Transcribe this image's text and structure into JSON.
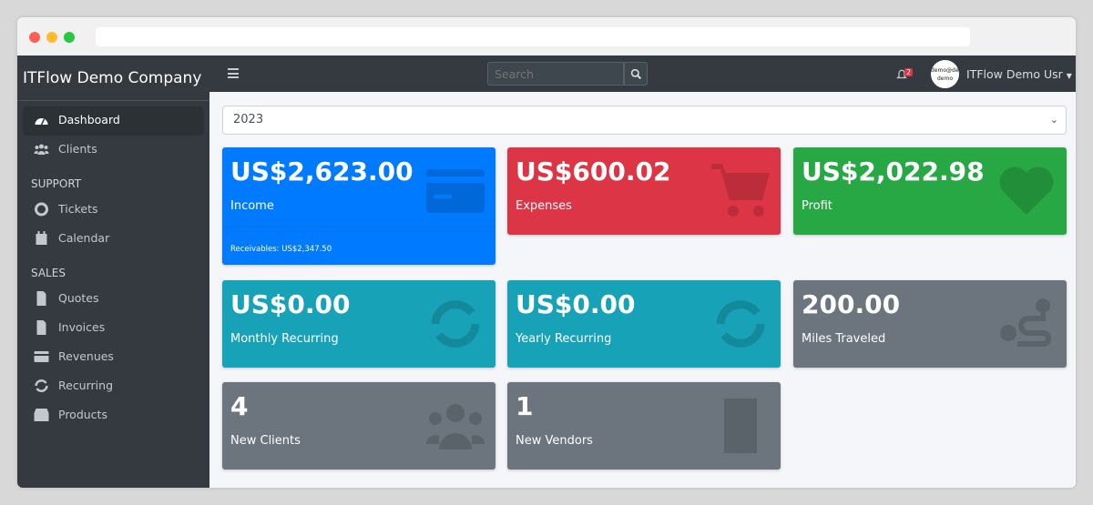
{
  "sidebar": {
    "brand": "ITFlow Demo Company",
    "items": [
      {
        "label": "Dashboard",
        "icon": "tachometer-icon"
      },
      {
        "label": "Clients",
        "icon": "users-icon"
      }
    ],
    "support_header": "SUPPORT",
    "support": [
      {
        "label": "Tickets",
        "icon": "life-ring-icon"
      },
      {
        "label": "Calendar",
        "icon": "calendar-icon"
      }
    ],
    "sales_header": "SALES",
    "sales": [
      {
        "label": "Quotes",
        "icon": "file-icon"
      },
      {
        "label": "Invoices",
        "icon": "file-invoice-icon"
      },
      {
        "label": "Revenues",
        "icon": "credit-card-icon"
      },
      {
        "label": "Recurring",
        "icon": "sync-icon"
      },
      {
        "label": "Products",
        "icon": "box-icon"
      }
    ]
  },
  "topbar": {
    "search_placeholder": "Search",
    "notifications": "2",
    "avatar_text": "demo@demo demo",
    "user": "ITFlow Demo Usr"
  },
  "filter": {
    "year": "2023"
  },
  "cards": {
    "income": {
      "value": "US$2,623.00",
      "label": "Income",
      "footer": "Receivables: US$2,347.50",
      "color": "#007bff"
    },
    "expenses": {
      "value": "US$600.02",
      "label": "Expenses",
      "color": "#dc3545"
    },
    "profit": {
      "value": "US$2,022.98",
      "label": "Profit",
      "color": "#28a745"
    },
    "monthly": {
      "value": "US$0.00",
      "label": "Monthly Recurring",
      "color": "#17a2b8"
    },
    "yearly": {
      "value": "US$0.00",
      "label": "Yearly Recurring",
      "color": "#17a2b8"
    },
    "miles": {
      "value": "200.00",
      "label": "Miles Traveled",
      "color": "#6c757d"
    },
    "clients": {
      "value": "4",
      "label": "New Clients",
      "color": "#6c757d"
    },
    "vendors": {
      "value": "1",
      "label": "New Vendors",
      "color": "#6c757d"
    }
  }
}
